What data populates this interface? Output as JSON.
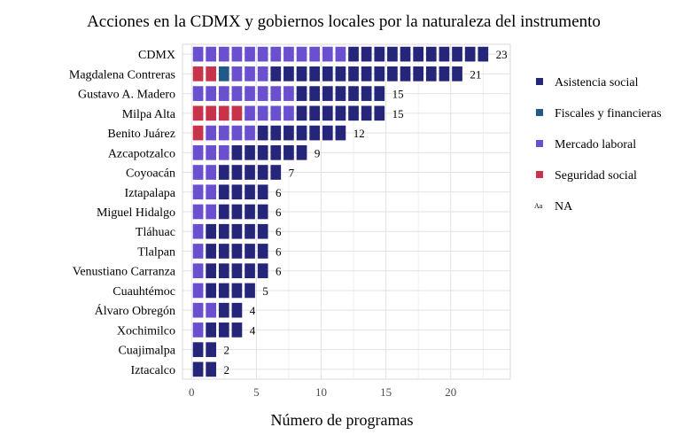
{
  "chart_data": {
    "type": "bar",
    "title": "Acciones en la CDMX y gobiernos locales por la naturaleza del instrumento",
    "xlabel": "Número de programas",
    "ylabel": "",
    "xlim": [
      -0.7,
      24.6
    ],
    "xticks": [
      "0",
      "5",
      "10",
      "15",
      "20"
    ],
    "grid": true,
    "legend_position": "right",
    "categories": [
      "CDMX",
      "Magdalena Contreras",
      "Gustavo A. Madero",
      "Milpa Alta",
      "Benito Juárez",
      "Azcapotzalco",
      "Coyoacán",
      "Iztapalapa",
      "Miguel Hidalgo",
      "Tláhuac",
      "Tlalpan",
      "Venustiano Carranza",
      "Cuauhtémoc",
      "Álvaro Obregón",
      "Xochimilco",
      "Cuajimalpa",
      "Iztacalco"
    ],
    "totals": [
      23,
      21,
      15,
      15,
      12,
      9,
      7,
      6,
      6,
      6,
      6,
      6,
      5,
      4,
      4,
      2,
      2
    ],
    "series": [
      {
        "name": "Seguridad social",
        "color": "#c8334c",
        "values": [
          0,
          2,
          0,
          4,
          1,
          0,
          0,
          0,
          0,
          0,
          0,
          0,
          0,
          0,
          0,
          0,
          0
        ]
      },
      {
        "name": "Fiscales y financieras",
        "color": "#1f5a8a",
        "values": [
          0,
          1,
          0,
          0,
          0,
          0,
          0,
          0,
          0,
          0,
          0,
          0,
          0,
          0,
          0,
          0,
          0
        ]
      },
      {
        "name": "Mercado laboral",
        "color": "#6a4fcf",
        "values": [
          12,
          3,
          8,
          4,
          4,
          3,
          2,
          2,
          2,
          1,
          1,
          1,
          1,
          2,
          1,
          0,
          0
        ]
      },
      {
        "name": "Asistencia social",
        "color": "#25257a",
        "values": [
          11,
          15,
          7,
          7,
          7,
          6,
          5,
          4,
          4,
          5,
          5,
          5,
          4,
          2,
          3,
          2,
          2
        ]
      }
    ],
    "legend": [
      {
        "name": "Asistencia social",
        "color": "#25257a"
      },
      {
        "name": "Fiscales y financieras",
        "color": "#1f5a8a"
      },
      {
        "name": "Mercado laboral",
        "color": "#6a4fcf"
      },
      {
        "name": "Seguridad social",
        "color": "#c8334c"
      }
    ],
    "legend_na": {
      "symbol": "Aa",
      "label": "NA"
    }
  }
}
